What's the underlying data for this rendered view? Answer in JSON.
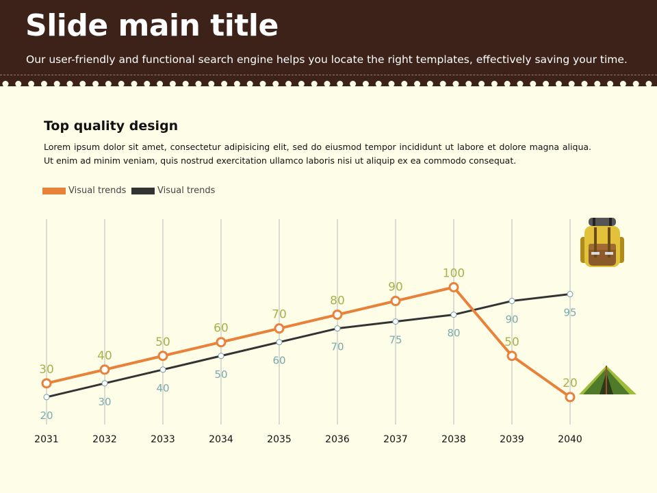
{
  "slide": {
    "title": "Slide main title",
    "subtitle": "Our user-friendly and functional search engine helps you locate the right templates, effectively saving your time.",
    "section_heading": "Top quality design",
    "body": "Lorem ipsum dolor sit amet, consectetur adipisicing elit, sed do eiusmod tempor incididunt ut labore et dolore magna aliqua. Ut enim ad minim veniam, quis nostrud exercitation ullamco laboris nisi ut aliquip ex ea commodo consequat."
  },
  "colors": {
    "header_bg": "#3d2219",
    "background": "#fdfde8",
    "orange": "#e8823a",
    "dark": "#333333",
    "orange_label": "#a8b24a",
    "dark_label": "#7aaab0",
    "gridline": "#b8bcbc"
  },
  "icons": {
    "top_right": "backpack-icon",
    "bottom_right": "tent-icon"
  },
  "chart_data": {
    "type": "line",
    "title": "",
    "xlabel": "",
    "ylabel": "",
    "grid": "vertical",
    "legend": "top-left",
    "categories": [
      "2031",
      "2032",
      "2033",
      "2034",
      "2035",
      "2036",
      "2037",
      "2038",
      "2039",
      "2040"
    ],
    "series": [
      {
        "name": "Visual trends",
        "color": "#e8823a",
        "values": [
          30,
          40,
          50,
          60,
          70,
          80,
          90,
          100,
          50,
          20
        ]
      },
      {
        "name": "Visual trends",
        "color": "#333333",
        "values": [
          20,
          30,
          40,
          50,
          60,
          70,
          75,
          80,
          90,
          95
        ]
      }
    ]
  }
}
